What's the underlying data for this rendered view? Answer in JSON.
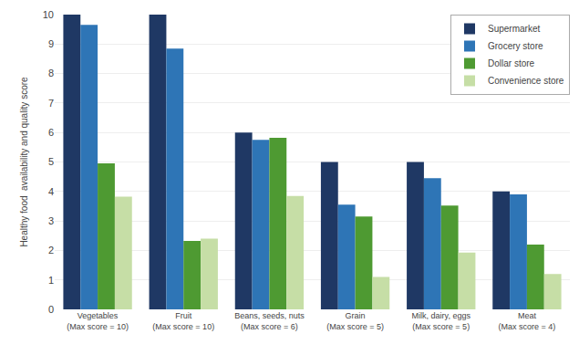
{
  "chart_data": {
    "type": "bar",
    "categories": [
      "Vegetables\n(Max score = 10)",
      "Fruit\n(Max score = 10)",
      "Beans, seeds, nuts\n(Max score = 6)",
      "Grain\n(Max score = 5)",
      "Milk, dairy, eggs\n(Max score = 5)",
      "Meat\n(Max score = 4)"
    ],
    "series": [
      {
        "name": "Supermarket",
        "color": "#1f3864",
        "values": [
          10.0,
          10.0,
          6.0,
          5.0,
          5.0,
          4.0
        ]
      },
      {
        "name": "Grocery store",
        "color": "#2e75b6",
        "values": [
          9.65,
          8.85,
          5.75,
          3.55,
          4.45,
          3.9
        ]
      },
      {
        "name": "Dollar store",
        "color": "#4e9a32",
        "values": [
          4.95,
          2.32,
          5.82,
          3.15,
          3.52,
          2.2
        ]
      },
      {
        "name": "Convenience store",
        "color": "#c6dea6",
        "values": [
          3.82,
          2.4,
          3.85,
          1.1,
          1.93,
          1.2
        ]
      }
    ],
    "y_label": "Healthy food  availability and quality score",
    "ylim": [
      0,
      10
    ],
    "yticks": [
      0,
      1,
      2,
      3,
      4,
      5,
      6,
      7,
      8,
      9,
      10
    ],
    "grid": true,
    "legend": "upper right"
  }
}
